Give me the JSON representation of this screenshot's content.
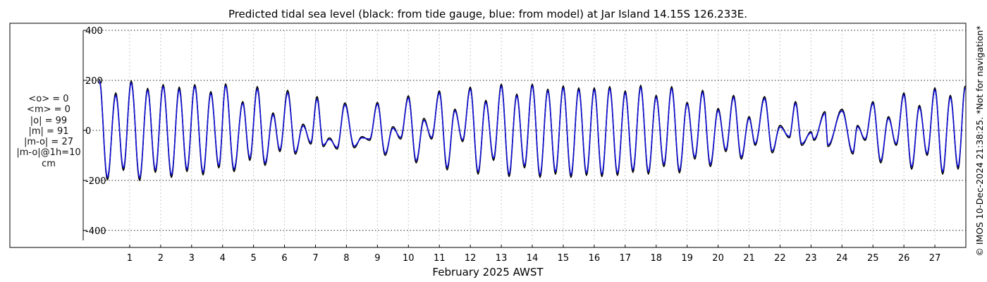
{
  "chart_data": {
    "type": "line",
    "title": "Predicted tidal sea level (black: from tide gauge, blue: from model) at Jar Island 14.15S 126.233E.",
    "xlabel": "February 2025 AWST",
    "ylabel": "",
    "xlim": [
      0,
      28
    ],
    "ylim": [
      -440,
      400
    ],
    "yticks": [
      400,
      200,
      0,
      -200,
      -400
    ],
    "yticklabels": [
      "400",
      "200",
      "0",
      "-200",
      "-400"
    ],
    "xticks": [
      1,
      2,
      3,
      4,
      5,
      6,
      7,
      8,
      9,
      10,
      11,
      12,
      13,
      14,
      15,
      16,
      17,
      18,
      19,
      20,
      21,
      22,
      23,
      24,
      25,
      26,
      27
    ],
    "xticklabels": [
      "1",
      "2",
      "3",
      "4",
      "5",
      "6",
      "7",
      "8",
      "9",
      "10",
      "11",
      "12",
      "13",
      "14",
      "15",
      "16",
      "17",
      "18",
      "19",
      "20",
      "21",
      "22",
      "23",
      "24",
      "25",
      "26",
      "27"
    ],
    "grid": true,
    "series": [
      {
        "color": "#000000",
        "highs": [
          [
            0.02,
            205
          ],
          [
            0.55,
            150
          ],
          [
            1.05,
            198
          ],
          [
            1.58,
            168
          ],
          [
            2.08,
            183
          ],
          [
            2.6,
            173
          ],
          [
            3.1,
            183
          ],
          [
            3.62,
            155
          ],
          [
            4.1,
            186
          ],
          [
            4.65,
            115
          ],
          [
            5.12,
            175
          ],
          [
            5.63,
            70
          ],
          [
            6.1,
            160
          ],
          [
            6.6,
            25
          ],
          [
            7.05,
            135
          ],
          [
            7.45,
            -30
          ],
          [
            7.95,
            110
          ],
          [
            8.5,
            -25
          ],
          [
            9.0,
            112
          ],
          [
            9.5,
            15
          ],
          [
            10.0,
            138
          ],
          [
            10.5,
            48
          ],
          [
            11.0,
            158
          ],
          [
            11.5,
            85
          ],
          [
            12.0,
            173
          ],
          [
            12.5,
            120
          ],
          [
            13.0,
            185
          ],
          [
            13.5,
            145
          ],
          [
            14.0,
            185
          ],
          [
            14.5,
            165
          ],
          [
            15.0,
            178
          ],
          [
            15.5,
            170
          ],
          [
            16.0,
            170
          ],
          [
            16.5,
            175
          ],
          [
            17.0,
            158
          ],
          [
            17.5,
            180
          ],
          [
            18.0,
            140
          ],
          [
            18.5,
            175
          ],
          [
            19.0,
            112
          ],
          [
            19.5,
            160
          ],
          [
            20.0,
            88
          ],
          [
            20.5,
            140
          ],
          [
            21.0,
            55
          ],
          [
            21.5,
            135
          ],
          [
            22.0,
            20
          ],
          [
            22.5,
            115
          ],
          [
            23.0,
            -5
          ],
          [
            23.45,
            75
          ],
          [
            24.0,
            85
          ],
          [
            24.5,
            20
          ],
          [
            25.0,
            115
          ],
          [
            25.5,
            55
          ],
          [
            26.0,
            150
          ],
          [
            26.5,
            100
          ],
          [
            27.0,
            170
          ],
          [
            27.5,
            140
          ],
          [
            27.98,
            178
          ]
        ],
        "lows": [
          [
            0.28,
            -198
          ],
          [
            0.8,
            -160
          ],
          [
            1.32,
            -200
          ],
          [
            1.83,
            -168
          ],
          [
            2.35,
            -188
          ],
          [
            2.85,
            -165
          ],
          [
            3.37,
            -178
          ],
          [
            3.88,
            -150
          ],
          [
            4.37,
            -165
          ],
          [
            4.88,
            -120
          ],
          [
            5.37,
            -140
          ],
          [
            5.85,
            -85
          ],
          [
            6.35,
            -95
          ],
          [
            6.85,
            -55
          ],
          [
            7.25,
            -65
          ],
          [
            7.7,
            -75
          ],
          [
            8.25,
            -70
          ],
          [
            8.75,
            -40
          ],
          [
            9.25,
            -100
          ],
          [
            9.75,
            -35
          ],
          [
            10.25,
            -130
          ],
          [
            10.75,
            -35
          ],
          [
            11.25,
            -158
          ],
          [
            11.75,
            -45
          ],
          [
            12.25,
            -175
          ],
          [
            12.75,
            -120
          ],
          [
            13.25,
            -185
          ],
          [
            13.75,
            -150
          ],
          [
            14.25,
            -188
          ],
          [
            14.75,
            -175
          ],
          [
            15.25,
            -188
          ],
          [
            15.75,
            -180
          ],
          [
            16.25,
            -185
          ],
          [
            16.75,
            -180
          ],
          [
            17.25,
            -168
          ],
          [
            17.75,
            -175
          ],
          [
            18.25,
            -145
          ],
          [
            18.75,
            -170
          ],
          [
            19.25,
            -115
          ],
          [
            19.75,
            -145
          ],
          [
            20.25,
            -85
          ],
          [
            20.75,
            -115
          ],
          [
            21.2,
            -60
          ],
          [
            21.75,
            -90
          ],
          [
            22.3,
            -30
          ],
          [
            22.7,
            -60
          ],
          [
            23.1,
            -40
          ],
          [
            23.55,
            -65
          ],
          [
            24.35,
            -95
          ],
          [
            24.75,
            -40
          ],
          [
            25.25,
            -130
          ],
          [
            25.75,
            -60
          ],
          [
            26.25,
            -155
          ],
          [
            26.75,
            -100
          ],
          [
            27.25,
            -175
          ],
          [
            27.75,
            -155
          ]
        ]
      },
      {
        "color": "#1010d8",
        "highs": [
          [
            0.02,
            198
          ],
          [
            0.55,
            140
          ],
          [
            1.05,
            190
          ],
          [
            1.58,
            160
          ],
          [
            2.08,
            175
          ],
          [
            2.6,
            163
          ],
          [
            3.1,
            175
          ],
          [
            3.62,
            147
          ],
          [
            4.1,
            178
          ],
          [
            4.65,
            108
          ],
          [
            5.12,
            165
          ],
          [
            5.63,
            62
          ],
          [
            6.1,
            150
          ],
          [
            6.6,
            18
          ],
          [
            7.05,
            125
          ],
          [
            7.45,
            -36
          ],
          [
            7.95,
            102
          ],
          [
            8.5,
            -30
          ],
          [
            9.0,
            105
          ],
          [
            9.5,
            8
          ],
          [
            10.0,
            130
          ],
          [
            10.5,
            40
          ],
          [
            11.0,
            150
          ],
          [
            11.5,
            78
          ],
          [
            12.0,
            165
          ],
          [
            12.5,
            112
          ],
          [
            13.0,
            177
          ],
          [
            13.5,
            138
          ],
          [
            14.0,
            178
          ],
          [
            14.5,
            158
          ],
          [
            15.0,
            170
          ],
          [
            15.5,
            162
          ],
          [
            16.0,
            162
          ],
          [
            16.5,
            167
          ],
          [
            17.0,
            150
          ],
          [
            17.5,
            172
          ],
          [
            18.0,
            132
          ],
          [
            18.5,
            167
          ],
          [
            19.0,
            105
          ],
          [
            19.5,
            152
          ],
          [
            20.0,
            80
          ],
          [
            20.5,
            132
          ],
          [
            21.0,
            48
          ],
          [
            21.5,
            127
          ],
          [
            22.0,
            13
          ],
          [
            22.5,
            107
          ],
          [
            23.0,
            -10
          ],
          [
            23.45,
            67
          ],
          [
            24.0,
            78
          ],
          [
            24.5,
            14
          ],
          [
            25.0,
            108
          ],
          [
            25.5,
            48
          ],
          [
            26.0,
            142
          ],
          [
            26.5,
            92
          ],
          [
            27.0,
            162
          ],
          [
            27.5,
            132
          ],
          [
            27.98,
            170
          ]
        ],
        "lows": [
          [
            0.28,
            -188
          ],
          [
            0.8,
            -150
          ],
          [
            1.32,
            -190
          ],
          [
            1.83,
            -158
          ],
          [
            2.35,
            -178
          ],
          [
            2.85,
            -155
          ],
          [
            3.37,
            -168
          ],
          [
            3.88,
            -140
          ],
          [
            4.37,
            -155
          ],
          [
            4.88,
            -110
          ],
          [
            5.37,
            -130
          ],
          [
            5.85,
            -77
          ],
          [
            6.35,
            -87
          ],
          [
            6.85,
            -48
          ],
          [
            7.25,
            -58
          ],
          [
            7.7,
            -68
          ],
          [
            8.25,
            -63
          ],
          [
            8.75,
            -34
          ],
          [
            9.25,
            -92
          ],
          [
            9.75,
            -28
          ],
          [
            10.25,
            -121
          ],
          [
            10.75,
            -28
          ],
          [
            11.25,
            -148
          ],
          [
            11.75,
            -38
          ],
          [
            12.25,
            -165
          ],
          [
            12.75,
            -111
          ],
          [
            13.25,
            -175
          ],
          [
            13.75,
            -140
          ],
          [
            14.25,
            -178
          ],
          [
            14.75,
            -165
          ],
          [
            15.25,
            -178
          ],
          [
            15.75,
            -170
          ],
          [
            16.25,
            -175
          ],
          [
            16.75,
            -170
          ],
          [
            17.25,
            -158
          ],
          [
            17.75,
            -165
          ],
          [
            18.25,
            -135
          ],
          [
            18.75,
            -160
          ],
          [
            19.25,
            -106
          ],
          [
            19.75,
            -135
          ],
          [
            20.25,
            -77
          ],
          [
            20.75,
            -106
          ],
          [
            21.2,
            -53
          ],
          [
            21.75,
            -82
          ],
          [
            22.3,
            -24
          ],
          [
            22.7,
            -53
          ],
          [
            23.1,
            -34
          ],
          [
            23.55,
            -58
          ],
          [
            24.35,
            -87
          ],
          [
            24.75,
            -34
          ],
          [
            25.25,
            -121
          ],
          [
            25.75,
            -53
          ],
          [
            26.25,
            -145
          ],
          [
            26.75,
            -92
          ],
          [
            27.25,
            -165
          ],
          [
            27.75,
            -145
          ]
        ]
      }
    ]
  },
  "stats": {
    "mean_obs": "<o> = 0",
    "mean_model": "<m> = 0",
    "abs_obs": "|o| = 99",
    "abs_model": "|m| = 91",
    "abs_diff": "|m-o| = 27",
    "abs_diff_1h": "|m-o|@1h=10",
    "unit": "cm"
  },
  "credit": "© IMOS 10-Dec-2024 21:38:25. *Not for navigation*"
}
